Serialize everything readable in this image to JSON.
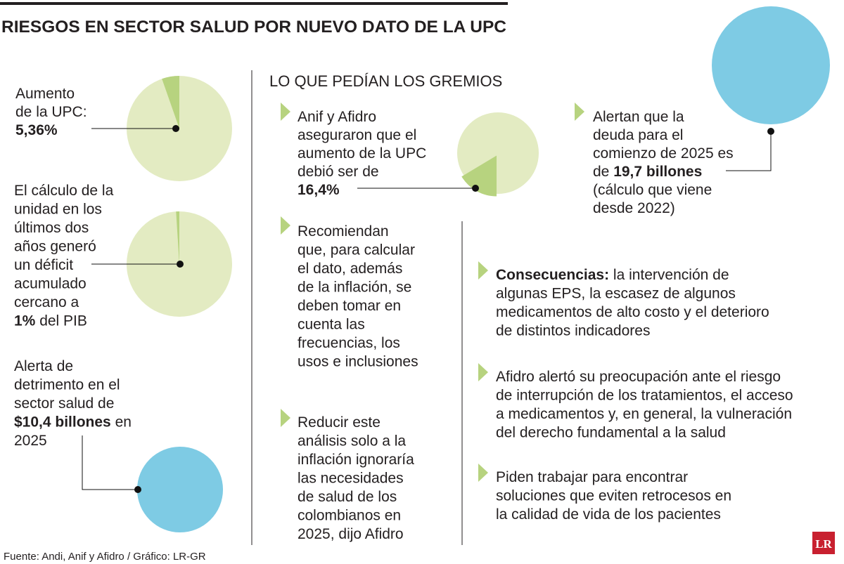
{
  "header": {
    "title": "RIESGOS EN SECTOR SALUD POR NUEVO DATO DE LA UPC"
  },
  "left": [
    {
      "lines": [
        [
          {
            "t": "Aumento"
          }
        ],
        [
          {
            "t": "de la UPC:"
          }
        ],
        [
          {
            "t": "5,36%",
            "b": true
          }
        ]
      ],
      "value": 5.36
    },
    {
      "lines": [
        [
          {
            "t": "El cálculo de la"
          }
        ],
        [
          {
            "t": "unidad en los"
          }
        ],
        [
          {
            "t": "últimos dos"
          }
        ],
        [
          {
            "t": "años generó"
          }
        ],
        [
          {
            "t": "un déficit"
          }
        ],
        [
          {
            "t": "acumulado"
          }
        ],
        [
          {
            "t": "cercano a"
          }
        ],
        [
          {
            "t": "1%",
            "b": true
          },
          {
            "t": " del PIB"
          }
        ]
      ],
      "value": 1
    },
    {
      "lines": [
        [
          {
            "t": "Alerta de"
          }
        ],
        [
          {
            "t": "detrimento en el"
          }
        ],
        [
          {
            "t": "sector salud de"
          }
        ],
        [
          {
            "t": "$10,4 billones",
            "b": true
          },
          {
            "t": " en"
          }
        ],
        [
          {
            "t": "2025"
          }
        ]
      ],
      "value": 10.4
    }
  ],
  "middle": {
    "heading": "LO QUE PEDÍAN LOS GREMIOS",
    "items": [
      {
        "lines": [
          [
            {
              "t": "Anif y Afidro"
            }
          ],
          [
            {
              "t": "aseguraron que el"
            }
          ],
          [
            {
              "t": "aumento de la UPC"
            }
          ],
          [
            {
              "t": "debió ser de"
            }
          ],
          [
            {
              "t": "16,4%",
              "b": true
            }
          ]
        ],
        "value": 16.4
      },
      {
        "lines": [
          [
            {
              "t": "Recomiendan"
            }
          ],
          [
            {
              "t": "que, para calcular"
            }
          ],
          [
            {
              "t": "el dato, además"
            }
          ],
          [
            {
              "t": "de la inflación, se"
            }
          ],
          [
            {
              "t": "deben tomar en"
            }
          ],
          [
            {
              "t": "cuenta las"
            }
          ],
          [
            {
              "t": "frecuencias, los"
            }
          ],
          [
            {
              "t": "usos e inclusiones"
            }
          ]
        ]
      },
      {
        "lines": [
          [
            {
              "t": "Reducir este"
            }
          ],
          [
            {
              "t": "análisis solo a la"
            }
          ],
          [
            {
              "t": "inflación ignoraría"
            }
          ],
          [
            {
              "t": "las necesidades"
            }
          ],
          [
            {
              "t": "de salud de los"
            }
          ],
          [
            {
              "t": "colombianos en"
            }
          ],
          [
            {
              "t": "2025, dijo Afidro"
            }
          ]
        ]
      }
    ]
  },
  "right": [
    {
      "lines": [
        [
          {
            "t": "Alertan que la"
          }
        ],
        [
          {
            "t": "deuda para el"
          }
        ],
        [
          {
            "t": "comienzo de 2025 es"
          }
        ],
        [
          {
            "t": "de "
          },
          {
            "t": "19,7 billones",
            "b": true
          }
        ],
        [
          {
            "t": "(cálculo que viene"
          }
        ],
        [
          {
            "t": "desde 2022)"
          }
        ]
      ],
      "value": 19.7
    },
    {
      "lines": [
        [
          {
            "t": "Consecuencias:",
            "b": true
          },
          {
            "t": " la intervención de"
          }
        ],
        [
          {
            "t": "algunas EPS, la escasez de algunos"
          }
        ],
        [
          {
            "t": "medicamentos de alto costo y el deterioro"
          }
        ],
        [
          {
            "t": "de distintos indicadores"
          }
        ]
      ]
    },
    {
      "lines": [
        [
          {
            "t": "Afidro alertó su preocupación ante el riesgo"
          }
        ],
        [
          {
            "t": "de interrupción de los tratamientos, el acceso"
          }
        ],
        [
          {
            "t": "a medicamentos y, en general, la vulneración"
          }
        ],
        [
          {
            "t": "del derecho fundamental a la salud"
          }
        ]
      ]
    },
    {
      "lines": [
        [
          {
            "t": "Piden trabajar para encontrar"
          }
        ],
        [
          {
            "t": "soluciones que eviten retrocesos en"
          }
        ],
        [
          {
            "t": "la calidad de vida de los pacientes"
          }
        ]
      ]
    }
  ],
  "footer": {
    "source": "Fuente: Andi, Anif y Afidro / Gráfico: LR-GR",
    "logo": "LR"
  }
}
